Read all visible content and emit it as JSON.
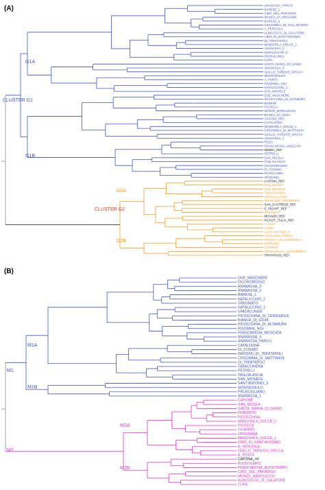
{
  "colors": {
    "blue": "#3f52c8",
    "orange": "#f29a22",
    "magenta": "#e22fcf",
    "black": "#111111",
    "grey": "#8a8a8a",
    "red_label": "#d2382b"
  },
  "panel_a": {
    "label": "(A)",
    "cluster_labels": {
      "g1": "CLUSTER G1",
      "g2": "CLUSTER G2"
    },
    "node_labels": {
      "g1a": "G1A",
      "g1b": "G1B",
      "g2a": "G2A",
      "g2b": "G2B"
    },
    "leaves": [
      {
        "name": "ANANASSA_PARCO",
        "color": "blue"
      },
      {
        "name": "BARESE_1",
        "color": "blue"
      },
      {
        "name": "CIBO_DEL_PARADISO",
        "color": "blue"
      },
      {
        "name": "BIANCA_DI_MESAGNE",
        "color": "blue"
      },
      {
        "name": "BARESE_2",
        "color": "blue"
      },
      {
        "name": "CRISOMINA_DI_SAN_SEVERO",
        "color": "blue"
      },
      {
        "name": "A_PERCOCA",
        "color": "blue"
      },
      {
        "name": "ALBICOCCO_DI_GALATONE",
        "color": "blue"
      },
      {
        "name": "CIBO_DI_SANT'ANTONIO",
        "color": "blue"
      },
      {
        "name": "DI_TRINITAPOLI",
        "color": "blue"
      },
      {
        "name": "MANDORLA_DOLCE_2",
        "color": "blue"
      },
      {
        "name": "ANANASSA_2",
        "color": "blue"
      },
      {
        "name": "NATALICCHIO_2",
        "color": "blue"
      },
      {
        "name": "SPADALUNGA",
        "color": "blue"
      },
      {
        "name": "CUPA",
        "color": "blue"
      },
      {
        "name": "SANTA_MARIA_DI_GIANO",
        "color": "blue"
      },
      {
        "name": "ANANASSA_3",
        "color": "blue"
      },
      {
        "name": "GIALLO_TARDIVO_SPICCA",
        "color": "blue"
      },
      {
        "name": "MONTAGNULO",
        "color": "blue"
      },
      {
        "name": "A_PUNTA",
        "color": "blue"
      },
      {
        "name": "RISOMINA_NISI",
        "color": "blue"
      },
      {
        "name": "NATALICCHIO_1",
        "color": "blue"
      },
      {
        "name": "SAN_MICHELE",
        "color": "blue"
      },
      {
        "name": "DUE_MASCHERE",
        "color": "blue"
      },
      {
        "name": "PICOCCHINA_DI_ALTAMURA",
        "color": "blue"
      },
      {
        "name": "BARESE",
        "color": "blue"
      },
      {
        "name": "PICOCCA",
        "color": "blue"
      },
      {
        "name": "MONTE_MARCUCCIO",
        "color": "blue"
      },
      {
        "name": "BIANCA_DI_GIOIA",
        "color": "blue"
      },
      {
        "name": "CAFONA_REF",
        "color": "blue"
      },
      {
        "name": "CATALOGNA",
        "color": "blue"
      },
      {
        "name": "MANDORLA_DOLCE_1",
        "color": "blue"
      },
      {
        "name": "CRISOMINA_DI_MATTINATA",
        "color": "blue"
      },
      {
        "name": "GIALLO_TARDIVO_SPICCA",
        "color": "blue"
      },
      {
        "name": "ANANASSA_1",
        "color": "blue"
      },
      {
        "name": "PIZZA",
        "color": "blue"
      },
      {
        "name": "FRASCAROSA_MOSCATA",
        "color": "blue"
      },
      {
        "name": "MIMMA_REF",
        "color": "black"
      },
      {
        "name": "PETRELLI",
        "color": "blue"
      },
      {
        "name": "SAN_NICOLA",
        "color": "blue"
      },
      {
        "name": "TAGLIALASCIA",
        "color": "blue"
      },
      {
        "name": "OCCHIOROSSO",
        "color": "blue"
      },
      {
        "name": "DI_COSIMO",
        "color": "blue"
      },
      {
        "name": "PICOCCHINA",
        "color": "blue"
      },
      {
        "name": "SPADARO",
        "color": "blue"
      },
      {
        "name": "CAFONA_REF",
        "color": "black"
      },
      {
        "name": "SAN_NICOLA",
        "color": "orange"
      },
      {
        "name": "SAN_MICHELE",
        "color": "orange"
      },
      {
        "name": "TABACCHIERA",
        "color": "orange"
      },
      {
        "name": "PRUSCIGLIANO",
        "color": "orange"
      },
      {
        "name": "FRANCESE_PROSEMITA",
        "color": "orange"
      },
      {
        "name": "SAN_CASTRESE_REF",
        "color": "black"
      },
      {
        "name": "S_VIGANT_REF",
        "color": "black"
      },
      {
        "name": "FRAGNITO",
        "color": "orange"
      },
      {
        "name": "MOVADO_REF",
        "color": "black"
      },
      {
        "name": "PICCOT_ITALIA_REF",
        "color": "black"
      },
      {
        "name": "A_CIMA",
        "color": "orange"
      },
      {
        "name": "CARPA",
        "color": "orange"
      },
      {
        "name": "SANT'ANTONIO_3",
        "color": "orange"
      },
      {
        "name": "ANANASSA_PARCO",
        "color": "orange"
      },
      {
        "name": "PICOCCA_DI_CERIGNOLA",
        "color": "orange"
      },
      {
        "name": "SPERONE",
        "color": "orange"
      },
      {
        "name": "GUARINO",
        "color": "orange"
      },
      {
        "name": "FRASCAROSA_BUONTEMPO",
        "color": "orange"
      },
      {
        "name": "TIRYNTHOS_REF",
        "color": "black"
      }
    ]
  },
  "panel_b": {
    "label": "(B)",
    "node_labels": {
      "m1": "M1",
      "m1a": "M1A",
      "m1b": "M1B",
      "m2": "M2",
      "m2a": "M2A",
      "m2b": "M2B"
    },
    "leaves": [
      {
        "name": "DUE_MASCHERE",
        "color": "blue"
      },
      {
        "name": "OCCHIOROSSO",
        "color": "blue"
      },
      {
        "name": "ANANASSA_3",
        "color": "blue"
      },
      {
        "name": "ANANASSA_2",
        "color": "blue"
      },
      {
        "name": "BARESE_1",
        "color": "blue"
      },
      {
        "name": "NATALICCHIO_2",
        "color": "blue"
      },
      {
        "name": "SPASIMATO",
        "color": "blue"
      },
      {
        "name": "NATALICCHIO_1",
        "color": "blue"
      },
      {
        "name": "SPADALUNGA",
        "color": "blue"
      },
      {
        "name": "PICOCCHINA_DI_CERIGNOLA",
        "color": "blue"
      },
      {
        "name": "BIANCA_DI_GIOIA",
        "color": "blue"
      },
      {
        "name": "PICOCCHINA_DI_ALTAMURA",
        "color": "blue"
      },
      {
        "name": "RISOMMA_NISI",
        "color": "blue"
      },
      {
        "name": "FRASCAROSA_MOSCATA",
        "color": "blue"
      },
      {
        "name": "ANANASSA_4",
        "color": "blue"
      },
      {
        "name": "ANANASSA_PARCO",
        "color": "blue"
      },
      {
        "name": "CATALOGNA",
        "color": "blue"
      },
      {
        "name": "DI_COSIMO",
        "color": "blue"
      },
      {
        "name": "GROSSO_DI_TRINITAPOLI",
        "color": "blue"
      },
      {
        "name": "CRISOMMA_DI_MATTINATA",
        "color": "blue"
      },
      {
        "name": "DI_TRINITAPOLI",
        "color": "blue"
      },
      {
        "name": "TABACCHIERA",
        "color": "blue"
      },
      {
        "name": "PETRELLI",
        "color": "blue"
      },
      {
        "name": "TAGLIALASCIA",
        "color": "blue"
      },
      {
        "name": "SAN_MICHELE",
        "color": "blue"
      },
      {
        "name": "SANT'ANTONIO_3",
        "color": "blue"
      },
      {
        "name": "MONTAGNULO",
        "color": "blue"
      },
      {
        "name": "PRUSCIGLIANO",
        "color": "blue"
      },
      {
        "name": "ANANASSA_1",
        "color": "blue"
      },
      {
        "name": "CAPONE",
        "color": "magenta"
      },
      {
        "name": "SAN_NICOLA",
        "color": "magenta"
      },
      {
        "name": "SANTA_MARIA_DI_GIANO",
        "color": "magenta"
      },
      {
        "name": "FRAGNITO",
        "color": "magenta"
      },
      {
        "name": "PICOCCHINA",
        "color": "magenta"
      },
      {
        "name": "MANDORLA_DOLCE_2",
        "color": "magenta"
      },
      {
        "name": "PICOCCA",
        "color": "magenta"
      },
      {
        "name": "GUARINO",
        "color": "magenta"
      },
      {
        "name": "CRISOMMA",
        "color": "magenta"
      },
      {
        "name": "MANDORLA_DOLCE_1",
        "color": "magenta"
      },
      {
        "name": "CIBO_DI_SANT'ANTONIO",
        "color": "magenta"
      },
      {
        "name": "A_PERCOCA",
        "color": "magenta"
      },
      {
        "name": "GIALLO_TARDIVO_SPICCA",
        "color": "magenta"
      },
      {
        "name": "A_PUNTA",
        "color": "magenta"
      },
      {
        "name": "CAFONA_ref",
        "color": "black"
      },
      {
        "name": "BUONTEMPO",
        "color": "magenta"
      },
      {
        "name": "FRASCAROSA_BUONTEMPO",
        "color": "magenta"
      },
      {
        "name": "CIBO_DEL_PARADISO",
        "color": "magenta"
      },
      {
        "name": "MONTE_MARCUCCIO",
        "color": "magenta"
      },
      {
        "name": "ALBICOCCO_DI_GALATONE",
        "color": "magenta"
      },
      {
        "name": "CUPA",
        "color": "magenta"
      }
    ]
  }
}
